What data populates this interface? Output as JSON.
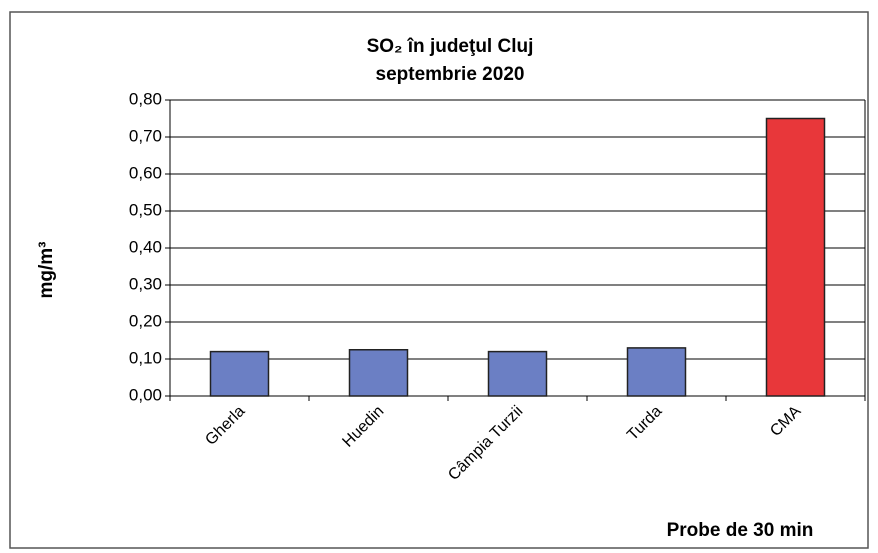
{
  "chart_data": {
    "type": "bar",
    "title": "SO₂ în judeţul Cluj",
    "subtitle": "septembrie 2020",
    "y_label": "mg/m³",
    "x_label": "Probe de 30 min",
    "categories": [
      "Gherla",
      "Huedin",
      "Câmpia Turzii",
      "Turda",
      "CMA"
    ],
    "values": [
      0.12,
      0.125,
      0.12,
      0.13,
      0.75
    ],
    "colors": [
      "#6b7fc4",
      "#6b7fc4",
      "#6b7fc4",
      "#6b7fc4",
      "#e8373a"
    ],
    "ylim": [
      0,
      0.8
    ],
    "yticks": [
      {
        "value": 0,
        "label": "0,00"
      },
      {
        "value": 0.1,
        "label": "0,10"
      },
      {
        "value": 0.2,
        "label": "0,20"
      },
      {
        "value": 0.3,
        "label": "0,30"
      },
      {
        "value": 0.4,
        "label": "0,40"
      },
      {
        "value": 0.5,
        "label": "0,50"
      },
      {
        "value": 0.6,
        "label": "0,60"
      },
      {
        "value": 0.7,
        "label": "0,70"
      },
      {
        "value": 0.8,
        "label": "0,80"
      }
    ],
    "grid": true
  }
}
